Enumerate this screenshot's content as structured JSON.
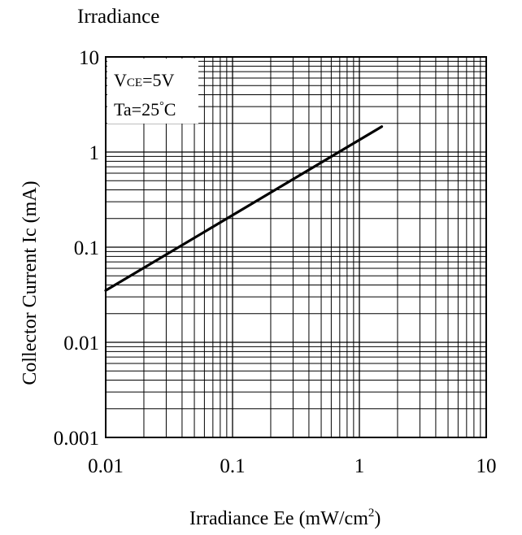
{
  "chart_data": {
    "type": "line",
    "title": "Irradiance",
    "xlabel": "Irradiance Ee (mW/cm",
    "xlabel_sup": "2",
    "xlabel_tail": ")",
    "ylabel": "Collector Current Ic (mA)",
    "x_scale": "log",
    "y_scale": "log",
    "xlim": [
      0.01,
      10
    ],
    "ylim": [
      0.001,
      10
    ],
    "x_ticks": [
      {
        "value": 0.01,
        "label": "0.01"
      },
      {
        "value": 0.1,
        "label": "0.1"
      },
      {
        "value": 1,
        "label": "1"
      },
      {
        "value": 10,
        "label": "10"
      }
    ],
    "y_ticks": [
      {
        "value": 0.001,
        "label": "0.001"
      },
      {
        "value": 0.01,
        "label": "0.01"
      },
      {
        "value": 0.1,
        "label": "0.1"
      },
      {
        "value": 1,
        "label": "1"
      },
      {
        "value": 10,
        "label": "10"
      }
    ],
    "grid": true,
    "annotations": {
      "vce_main": "V",
      "vce_sub": "CE",
      "vce_value": "=5V",
      "ta_main": "Ta=25",
      "ta_degree": "°",
      "ta_unit": "C"
    },
    "series": [
      {
        "x": [
          0.01,
          1.5
        ],
        "y": [
          0.035,
          1.85
        ]
      }
    ],
    "line_color": "#000000"
  }
}
